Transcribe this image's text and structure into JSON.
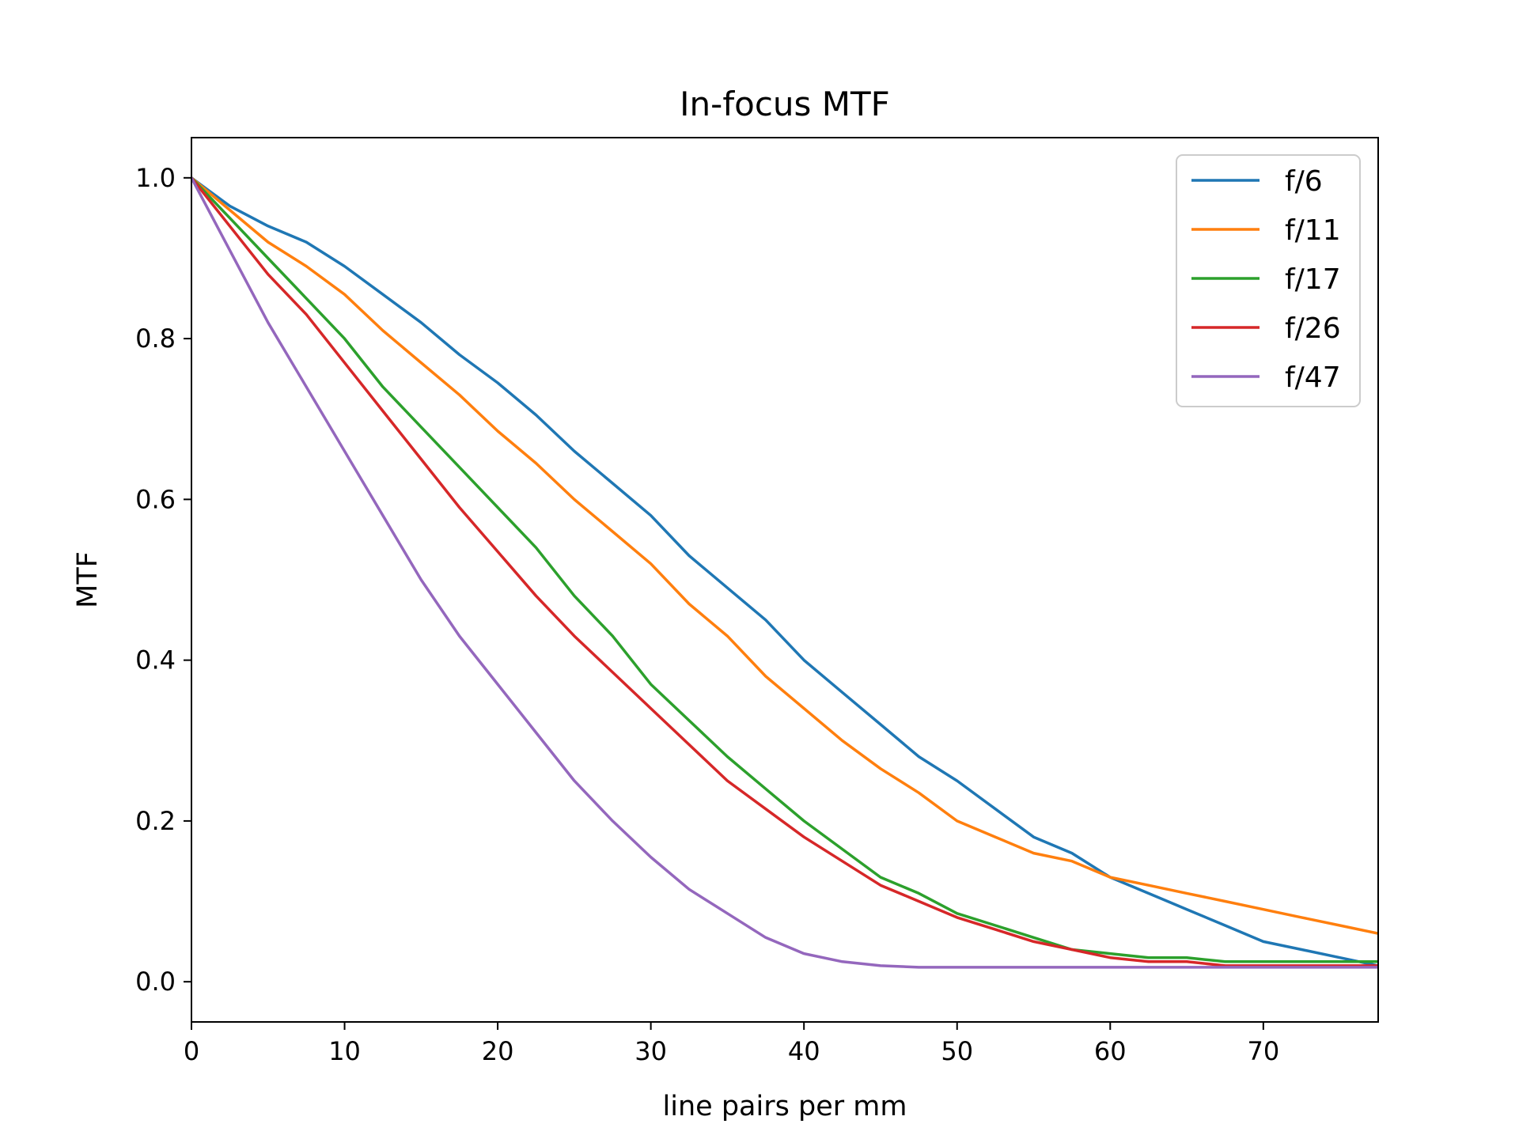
{
  "chart_data": {
    "type": "line",
    "title": "In-focus MTF",
    "xlabel": "line pairs per mm",
    "ylabel": "MTF",
    "xlim": [
      0,
      77.5
    ],
    "ylim": [
      -0.05,
      1.05
    ],
    "xticks": [
      0,
      10,
      20,
      30,
      40,
      50,
      60,
      70
    ],
    "yticks": [
      0.0,
      0.2,
      0.4,
      0.6,
      0.8,
      1.0
    ],
    "xtick_labels": [
      "0",
      "10",
      "20",
      "30",
      "40",
      "50",
      "60",
      "70"
    ],
    "ytick_labels": [
      "0.0",
      "0.2",
      "0.4",
      "0.6",
      "0.8",
      "1.0"
    ],
    "grid": false,
    "legend_position": "top-right",
    "x": [
      0,
      2.5,
      5,
      7.5,
      10,
      12.5,
      15,
      17.5,
      20,
      22.5,
      25,
      27.5,
      30,
      32.5,
      35,
      37.5,
      40,
      42.5,
      45,
      47.5,
      50,
      52.5,
      55,
      57.5,
      60,
      62.5,
      65,
      67.5,
      70,
      72.5,
      75,
      77.5
    ],
    "series": [
      {
        "name": "f/6",
        "color": "#1f77b4",
        "values": [
          1.0,
          0.965,
          0.94,
          0.92,
          0.89,
          0.855,
          0.82,
          0.78,
          0.745,
          0.705,
          0.66,
          0.62,
          0.58,
          0.53,
          0.49,
          0.45,
          0.4,
          0.36,
          0.32,
          0.28,
          0.25,
          0.215,
          0.18,
          0.16,
          0.13,
          0.11,
          0.09,
          0.07,
          0.05,
          0.04,
          0.03,
          0.02
        ]
      },
      {
        "name": "f/11",
        "color": "#ff7f0e",
        "values": [
          1.0,
          0.96,
          0.92,
          0.89,
          0.855,
          0.81,
          0.77,
          0.73,
          0.685,
          0.645,
          0.6,
          0.56,
          0.52,
          0.47,
          0.43,
          0.38,
          0.34,
          0.3,
          0.265,
          0.235,
          0.2,
          0.18,
          0.16,
          0.15,
          0.13,
          0.12,
          0.11,
          0.1,
          0.09,
          0.08,
          0.07,
          0.06
        ]
      },
      {
        "name": "f/17",
        "color": "#2ca02c",
        "values": [
          1.0,
          0.95,
          0.9,
          0.85,
          0.8,
          0.74,
          0.69,
          0.64,
          0.59,
          0.54,
          0.48,
          0.43,
          0.37,
          0.325,
          0.28,
          0.24,
          0.2,
          0.165,
          0.13,
          0.11,
          0.085,
          0.07,
          0.055,
          0.04,
          0.035,
          0.03,
          0.03,
          0.025,
          0.025,
          0.025,
          0.025,
          0.025
        ]
      },
      {
        "name": "f/26",
        "color": "#d62728",
        "values": [
          1.0,
          0.94,
          0.88,
          0.83,
          0.77,
          0.71,
          0.65,
          0.59,
          0.535,
          0.48,
          0.43,
          0.385,
          0.34,
          0.295,
          0.25,
          0.215,
          0.18,
          0.15,
          0.12,
          0.1,
          0.08,
          0.065,
          0.05,
          0.04,
          0.03,
          0.025,
          0.025,
          0.02,
          0.02,
          0.02,
          0.02,
          0.02
        ]
      },
      {
        "name": "f/47",
        "color": "#9467bd",
        "values": [
          1.0,
          0.91,
          0.82,
          0.74,
          0.66,
          0.58,
          0.5,
          0.43,
          0.37,
          0.31,
          0.25,
          0.2,
          0.155,
          0.115,
          0.085,
          0.055,
          0.035,
          0.025,
          0.02,
          0.018,
          0.018,
          0.018,
          0.018,
          0.018,
          0.018,
          0.018,
          0.018,
          0.018,
          0.018,
          0.018,
          0.018,
          0.018
        ]
      }
    ]
  }
}
